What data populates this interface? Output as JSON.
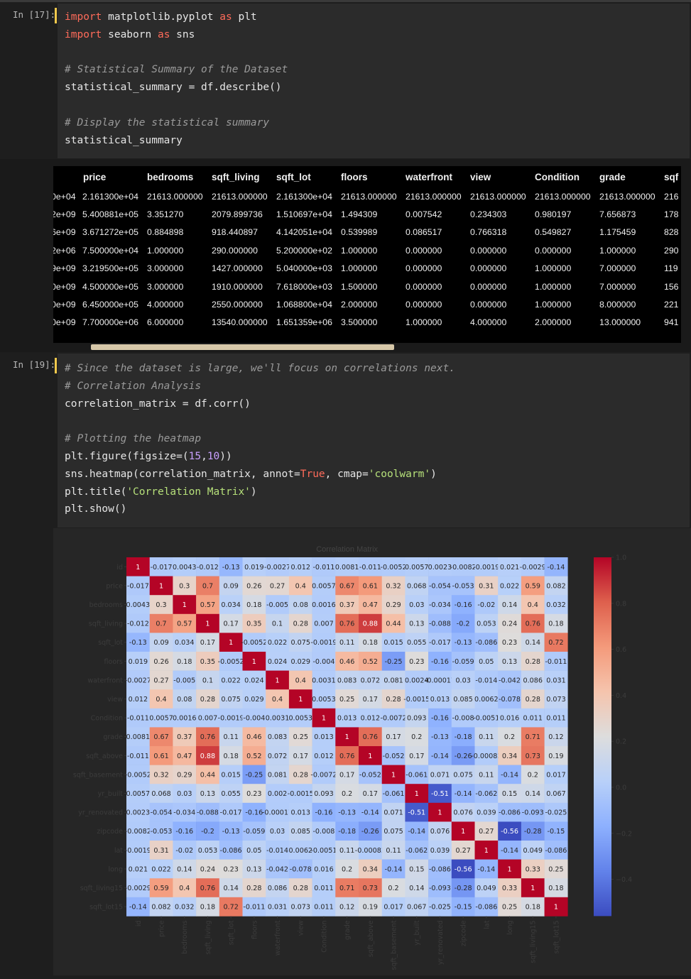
{
  "cells": {
    "cell1": {
      "prompt": "In [17]:",
      "lines": [
        "import matplotlib.pyplot as plt",
        "import seaborn as sns",
        "",
        "# Statistical Summary of the Dataset",
        "statistical_summary = df.describe()",
        "",
        "# Display the statistical summary",
        "statistical_summary"
      ]
    },
    "cell2": {
      "prompt": "In [19]:",
      "lines": [
        "# Since the dataset is large, we'll focus on correlations next.",
        "# Correlation Analysis",
        "correlation_matrix = df.corr()",
        "",
        "# Plotting the heatmap",
        "plt.figure(figsize=(15,10))",
        "sns.heatmap(correlation_matrix, annot=True, cmap='coolwarm')",
        "plt.title('Correlation Matrix')",
        "plt.show()"
      ]
    }
  },
  "summary_table": {
    "columns": [
      "",
      "price",
      "bedrooms",
      "sqft_living",
      "sqft_lot",
      "floors",
      "waterfront",
      "view",
      "Condition",
      "grade",
      "sqf"
    ],
    "rows": [
      [
        "0e+04",
        "2.161300e+04",
        "21613.000000",
        "21613.000000",
        "2.161300e+04",
        "21613.000000",
        "21613.000000",
        "21613.000000",
        "21613.000000",
        "21613.000000",
        "216"
      ],
      [
        "2e+09",
        "5.400881e+05",
        "3.351270",
        "2079.899736",
        "1.510697e+04",
        "1.494309",
        "0.007542",
        "0.234303",
        "0.980197",
        "7.656873",
        "178"
      ],
      [
        "6e+09",
        "3.671272e+05",
        "0.884898",
        "918.440897",
        "4.142051e+04",
        "0.539989",
        "0.086517",
        "0.766318",
        "0.549827",
        "1.175459",
        "828"
      ],
      [
        "2e+06",
        "7.500000e+04",
        "1.000000",
        "290.000000",
        "5.200000e+02",
        "1.000000",
        "0.000000",
        "0.000000",
        "0.000000",
        "1.000000",
        "290"
      ],
      [
        "9e+09",
        "3.219500e+05",
        "3.000000",
        "1427.000000",
        "5.040000e+03",
        "1.000000",
        "0.000000",
        "0.000000",
        "1.000000",
        "7.000000",
        "119"
      ],
      [
        "0e+09",
        "4.500000e+05",
        "3.000000",
        "1910.000000",
        "7.618000e+03",
        "1.500000",
        "0.000000",
        "0.000000",
        "1.000000",
        "7.000000",
        "156"
      ],
      [
        "0e+09",
        "6.450000e+05",
        "4.000000",
        "2550.000000",
        "1.068800e+04",
        "2.000000",
        "0.000000",
        "0.000000",
        "1.000000",
        "8.000000",
        "221"
      ],
      [
        "0e+09",
        "7.700000e+06",
        "6.000000",
        "13540.000000",
        "1.651359e+06",
        "3.500000",
        "1.000000",
        "4.000000",
        "2.000000",
        "13.000000",
        "941"
      ]
    ]
  },
  "chart_data": {
    "type": "heatmap",
    "title": "Correlation Matrix",
    "labels": [
      "id",
      "price",
      "bedrooms",
      "sqft_living",
      "sqft_lot",
      "floors",
      "waterfront",
      "view",
      "Condition",
      "grade",
      "sqft_above",
      "sqft_basement",
      "yr_built",
      "yr_renovated",
      "zipcode",
      "lat",
      "long",
      "sqft_living15",
      "sqft_lot15"
    ],
    "annotations": [
      [
        "1",
        "-0.017",
        "0.0043",
        "-0.012",
        "-0.13",
        "0.019",
        "-0.0027",
        "0.012",
        "-0.011",
        "0.0081",
        "-0.011",
        "-0.0052",
        "0.0057",
        "0.0023",
        "-0.0082",
        "-0.0019",
        "0.021",
        "-0.0029",
        "-0.14"
      ],
      [
        "-0.017",
        "1",
        "0.3",
        "0.7",
        "0.09",
        "0.26",
        "0.27",
        "0.4",
        "0.0057",
        "0.67",
        "0.61",
        "0.32",
        "0.068",
        "-0.054",
        "-0.053",
        "0.31",
        "0.022",
        "0.59",
        "0.082"
      ],
      [
        "0.0043",
        "0.3",
        "1",
        "0.57",
        "0.034",
        "0.18",
        "-0.005",
        "0.08",
        "0.0016",
        "0.37",
        "0.47",
        "0.29",
        "0.03",
        "-0.034",
        "-0.16",
        "-0.02",
        "0.14",
        "0.4",
        "0.032"
      ],
      [
        "-0.012",
        "0.7",
        "0.57",
        "1",
        "0.17",
        "0.35",
        "0.1",
        "0.28",
        "0.007",
        "0.76",
        "0.88",
        "0.44",
        "0.13",
        "-0.088",
        "-0.2",
        "0.053",
        "0.24",
        "0.76",
        "0.18"
      ],
      [
        "-0.13",
        "0.09",
        "0.034",
        "0.17",
        "1",
        "-0.0052",
        "0.022",
        "0.075",
        "-0.0019",
        "0.11",
        "0.18",
        "0.015",
        "0.055",
        "-0.017",
        "-0.13",
        "-0.086",
        "0.23",
        "0.14",
        "0.72"
      ],
      [
        "0.019",
        "0.26",
        "0.18",
        "0.35",
        "-0.0052",
        "1",
        "0.024",
        "0.029",
        "-0.004",
        "0.46",
        "0.52",
        "-0.25",
        "0.23",
        "-0.16",
        "-0.059",
        "0.05",
        "0.13",
        "0.28",
        "-0.011"
      ],
      [
        "-0.0027",
        "0.27",
        "-0.005",
        "0.1",
        "0.022",
        "0.024",
        "1",
        "0.4",
        "0.0031",
        "0.083",
        "0.072",
        "0.081",
        "0.0024",
        "-0.00017",
        "0.03",
        "-0.014",
        "-0.042",
        "0.086",
        "0.031"
      ],
      [
        "0.012",
        "0.4",
        "0.08",
        "0.28",
        "0.075",
        "0.029",
        "0.4",
        "1",
        "0.0053",
        "0.25",
        "0.17",
        "0.28",
        "-0.0015",
        "0.013",
        "0.085",
        "0.0062",
        "-0.078",
        "0.28",
        "0.073"
      ],
      [
        "-0.011",
        "0.0057",
        "0.0016",
        "0.007",
        "-0.0019",
        "-0.004",
        "0.0031",
        "0.0053",
        "1",
        "0.013",
        "0.012",
        "-0.0072",
        "0.093",
        "-0.16",
        "-0.008",
        "-0.0051",
        "0.016",
        "0.011",
        "0.011"
      ],
      [
        "0.0081",
        "0.67",
        "0.37",
        "0.76",
        "0.11",
        "0.46",
        "0.083",
        "0.25",
        "0.013",
        "1",
        "0.76",
        "0.17",
        "0.2",
        "-0.13",
        "-0.18",
        "0.11",
        "0.2",
        "0.71",
        "0.12"
      ],
      [
        "-0.011",
        "0.61",
        "0.47",
        "0.88",
        "0.18",
        "0.52",
        "0.072",
        "0.17",
        "0.012",
        "0.76",
        "1",
        "-0.052",
        "0.17",
        "-0.14",
        "-0.26",
        "-0.00082",
        "0.34",
        "0.73",
        "0.19"
      ],
      [
        "-0.0052",
        "0.32",
        "0.29",
        "0.44",
        "0.015",
        "-0.25",
        "0.081",
        "0.28",
        "-0.0072",
        "0.17",
        "-0.052",
        "1",
        "-0.061",
        "0.071",
        "0.075",
        "0.11",
        "-0.14",
        "0.2",
        "0.017"
      ],
      [
        "0.0057",
        "0.068",
        "0.03",
        "0.13",
        "0.055",
        "0.23",
        "0.002",
        "-0.0015",
        "0.093",
        "0.2",
        "0.17",
        "-0.061",
        "1",
        "-0.51",
        "-0.14",
        "-0.062",
        "0.15",
        "0.14",
        "0.067"
      ],
      [
        "0.0023",
        "-0.054",
        "-0.034",
        "-0.088",
        "-0.017",
        "-0.16",
        "-0.00017",
        "0.013",
        "-0.16",
        "-0.13",
        "-0.14",
        "0.071",
        "-0.51",
        "1",
        "0.076",
        "0.039",
        "-0.086",
        "-0.093",
        "-0.025"
      ],
      [
        "-0.0082",
        "-0.053",
        "-0.16",
        "-0.2",
        "-0.13",
        "-0.059",
        "0.03",
        "0.085",
        "-0.008",
        "-0.18",
        "-0.26",
        "0.075",
        "-0.14",
        "0.076",
        "1",
        "0.27",
        "-0.56",
        "-0.28",
        "-0.15"
      ],
      [
        "-0.0019",
        "0.31",
        "-0.02",
        "0.053",
        "-0.086",
        "0.05",
        "-0.014",
        "0.0062",
        "-0.0051",
        "0.11",
        "-0.00082",
        "0.11",
        "-0.062",
        "0.039",
        "0.27",
        "1",
        "-0.14",
        "0.049",
        "-0.086"
      ],
      [
        "0.021",
        "0.022",
        "0.14",
        "0.24",
        "0.23",
        "0.13",
        "-0.042",
        "-0.078",
        "0.016",
        "0.2",
        "0.34",
        "-0.14",
        "0.15",
        "-0.086",
        "-0.56",
        "-0.14",
        "1",
        "0.33",
        "0.25"
      ],
      [
        "-0.0029",
        "0.59",
        "0.4",
        "0.76",
        "0.14",
        "0.28",
        "0.086",
        "0.28",
        "0.011",
        "0.71",
        "0.73",
        "0.2",
        "0.14",
        "-0.093",
        "-0.28",
        "0.049",
        "0.33",
        "1",
        "0.18"
      ],
      [
        "-0.14",
        "0.082",
        "0.032",
        "0.18",
        "0.72",
        "-0.011",
        "0.031",
        "0.073",
        "0.011",
        "0.12",
        "0.19",
        "0.017",
        "0.067",
        "-0.025",
        "-0.15",
        "-0.086",
        "0.25",
        "0.18",
        "1"
      ]
    ],
    "vmin": -0.56,
    "vmax": 1.0,
    "colorbar_ticks": [
      "1.0",
      "0.8",
      "0.6",
      "0.4",
      "0.2",
      "0.0",
      "−0.2",
      "−0.4"
    ],
    "colormap": "coolwarm"
  }
}
